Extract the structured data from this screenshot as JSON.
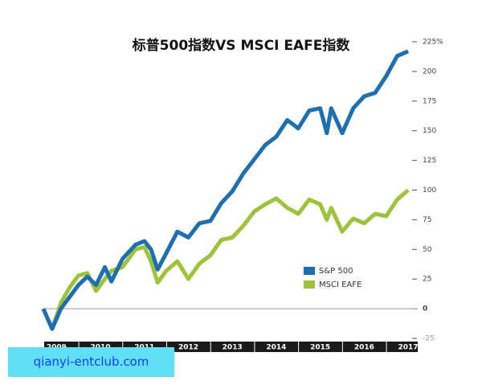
{
  "chart_data": {
    "type": "line",
    "title": "标普500指数VS MSCI EAFE指数",
    "x": [
      2009.2,
      2009.4,
      2009.6,
      2009.8,
      2010.0,
      2010.2,
      2010.4,
      2010.6,
      2010.75,
      2011.0,
      2011.3,
      2011.5,
      2011.65,
      2011.8,
      2012.0,
      2012.25,
      2012.5,
      2012.75,
      2013.0,
      2013.25,
      2013.5,
      2013.75,
      2014.0,
      2014.25,
      2014.5,
      2014.75,
      2015.0,
      2015.25,
      2015.5,
      2015.65,
      2015.75,
      2016.0,
      2016.25,
      2016.5,
      2016.75,
      2017.0,
      2017.25,
      2017.5
    ],
    "series": [
      {
        "name": "S&P 500",
        "color": "#1f6fb0",
        "values": [
          0,
          -17,
          0,
          10,
          20,
          27,
          20,
          35,
          23,
          42,
          54,
          57,
          50,
          33,
          47,
          65,
          60,
          72,
          74,
          89,
          99,
          114,
          126,
          138,
          145,
          159,
          152,
          167,
          169,
          148,
          169,
          148,
          169,
          179,
          182,
          196,
          213,
          217
        ]
      },
      {
        "name": "MSCI EAFE",
        "color": "#9dc33b",
        "values": [
          0,
          -17,
          5,
          18,
          28,
          30,
          15,
          25,
          32,
          35,
          50,
          52,
          40,
          22,
          32,
          40,
          25,
          38,
          45,
          58,
          60,
          70,
          82,
          88,
          93,
          85,
          80,
          92,
          88,
          75,
          85,
          65,
          76,
          72,
          80,
          78,
          92,
          100
        ]
      }
    ],
    "xlim": [
      2009,
      2017.7
    ],
    "xticks": [
      {
        "value": 2009.5,
        "label": "2009"
      },
      {
        "value": 2010.5,
        "label": "2010"
      },
      {
        "value": 2011.5,
        "label": "2011"
      },
      {
        "value": 2012.5,
        "label": "2012"
      },
      {
        "value": 2013.5,
        "label": "2013"
      },
      {
        "value": 2014.5,
        "label": "2014"
      },
      {
        "value": 2015.5,
        "label": "2015"
      },
      {
        "value": 2016.5,
        "label": "2016"
      },
      {
        "value": 2017.5,
        "label": "2017"
      }
    ],
    "ylim": [
      -25,
      225
    ],
    "yticks": [
      -25,
      0,
      25,
      50,
      75,
      100,
      125,
      150,
      175,
      200,
      {
        "value": 225,
        "label": "225%"
      }
    ],
    "watermark": "qianyi-entclub.com"
  }
}
